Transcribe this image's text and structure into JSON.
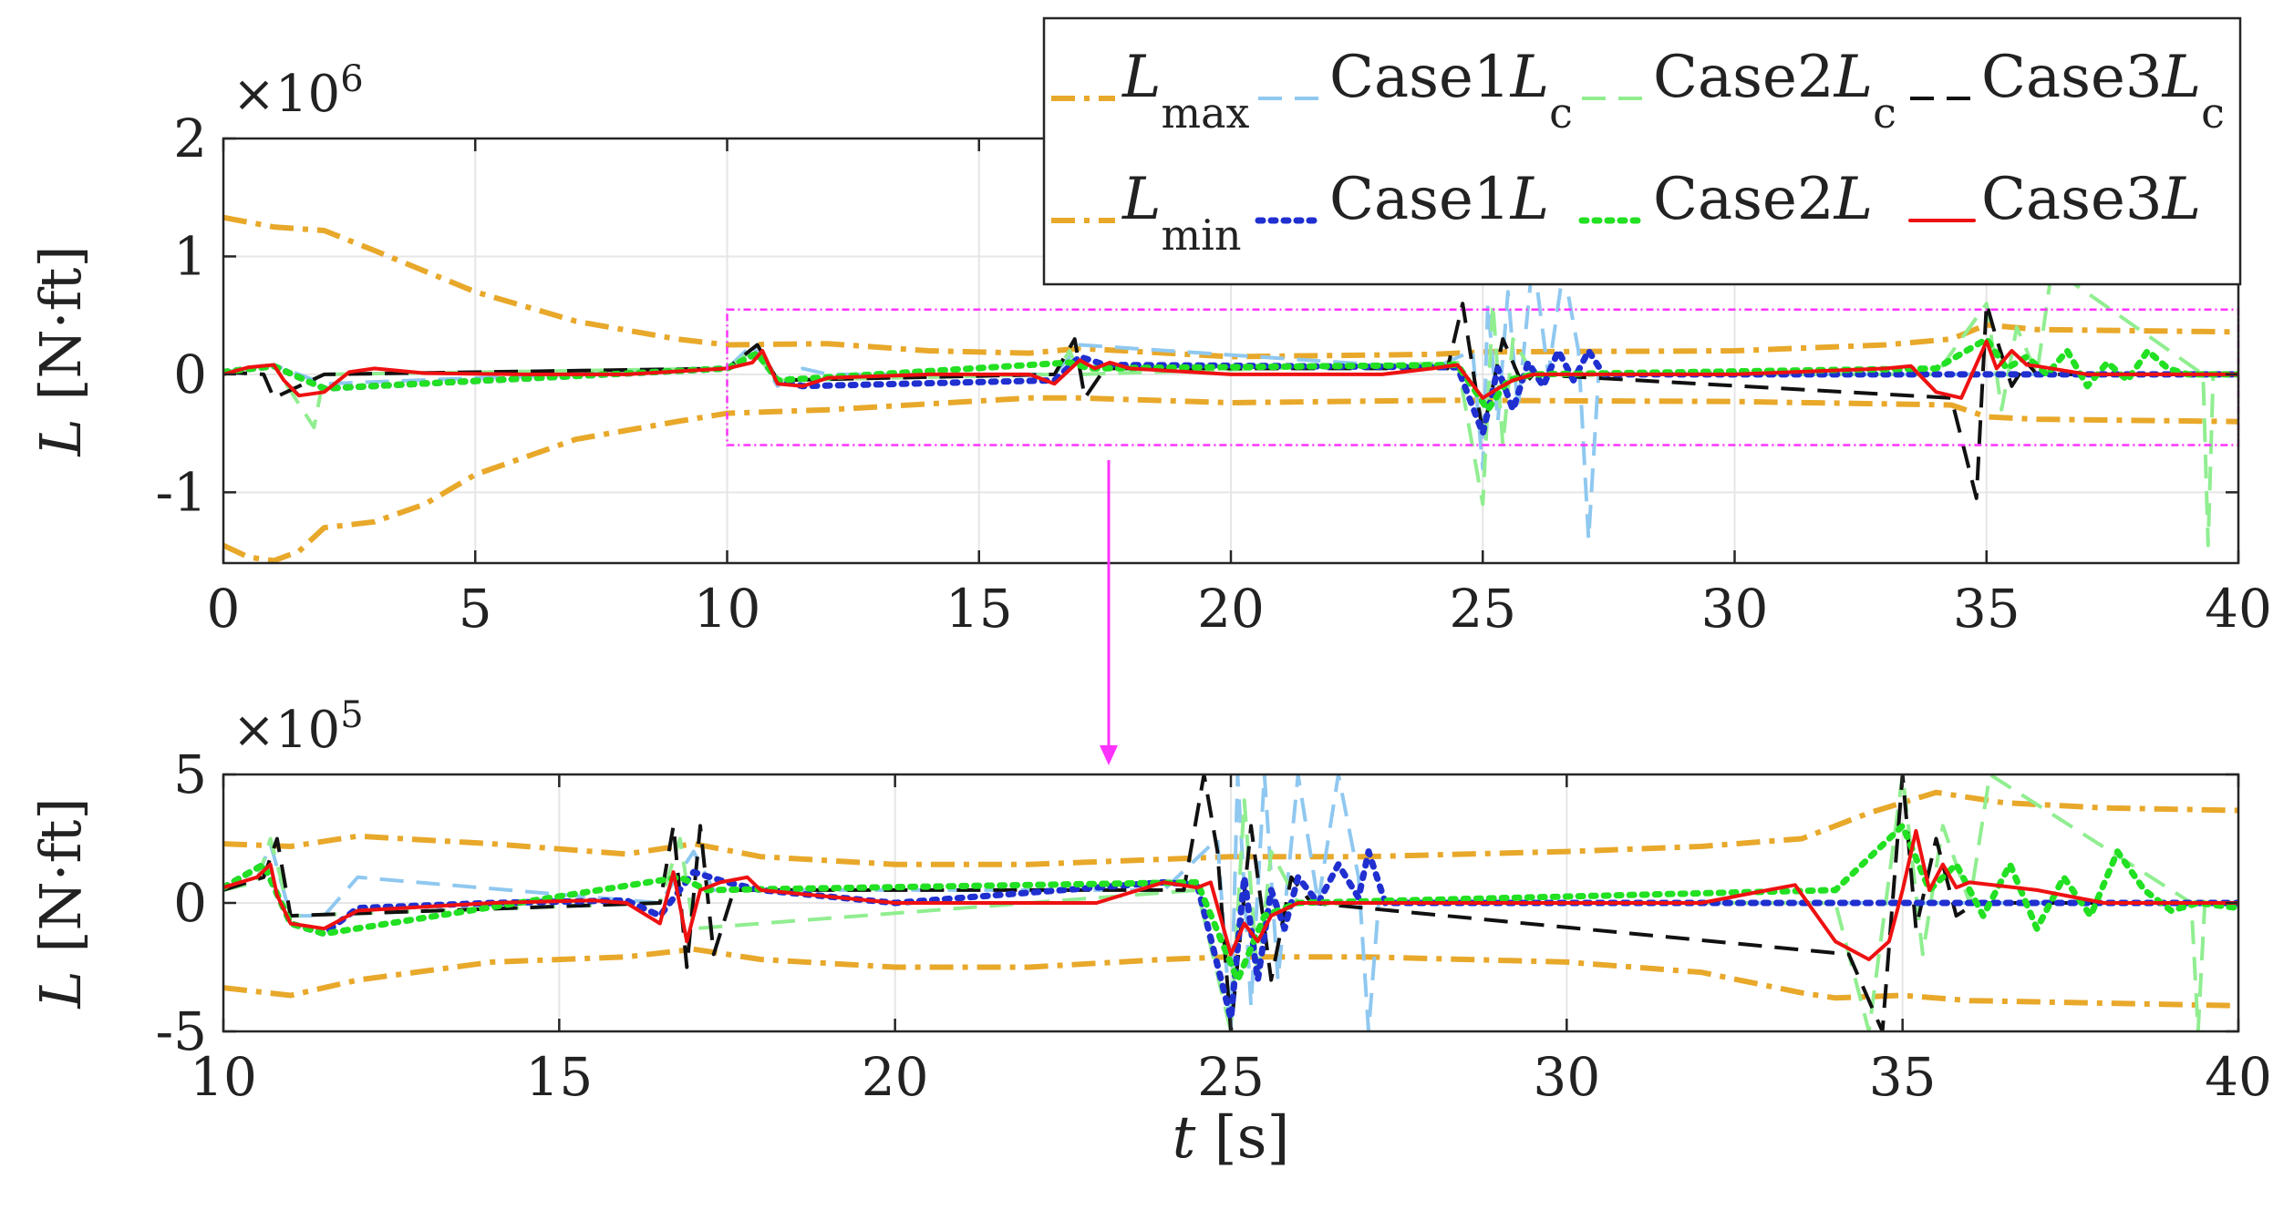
{
  "colors": {
    "bound": "#E8A82A",
    "case1_lc": "#8FC8F0",
    "case2_lc": "#90EE90",
    "case3_lc": "#111111",
    "case1_l": "#1F2FD0",
    "case2_l": "#22E022",
    "case3_l": "#EE1111",
    "zoom_box": "#FF33FF",
    "grid": "#E6E6E6"
  },
  "chart_data": [
    {
      "type": "line",
      "panel": "top",
      "exponent_label": "×10",
      "exponent_power": "6",
      "ylabel": "L [N·ft]",
      "xlabel": "",
      "xlim": [
        0,
        40
      ],
      "ylim": [
        -1.6,
        2
      ],
      "xticks": [
        0,
        5,
        10,
        15,
        20,
        25,
        30,
        35,
        40
      ],
      "xtick_labels": [
        "0",
        "5",
        "10",
        "15",
        "20",
        "25",
        "30",
        "35",
        "40"
      ],
      "yticks": [
        -1,
        0,
        1,
        2
      ],
      "ytick_labels": [
        "-1",
        "0",
        "1",
        "2"
      ],
      "zoom_box": {
        "x": [
          10,
          40
        ],
        "y": [
          -0.6,
          0.55
        ]
      },
      "series": [
        {
          "name": "Lmax",
          "style": "dashdot",
          "color_key": "bound",
          "x": [
            0,
            1,
            2,
            3,
            5,
            7,
            9,
            10,
            12,
            14,
            16,
            17,
            20,
            24,
            25,
            30,
            33,
            34.3,
            35,
            36,
            40
          ],
          "y": [
            1.33,
            1.25,
            1.22,
            1.05,
            0.7,
            0.45,
            0.3,
            0.25,
            0.26,
            0.2,
            0.18,
            0.22,
            0.15,
            0.17,
            0.19,
            0.2,
            0.25,
            0.3,
            0.42,
            0.38,
            0.36
          ]
        },
        {
          "name": "Lmin",
          "style": "dashdot",
          "color_key": "bound",
          "x": [
            0,
            0.5,
            1,
            1.5,
            2,
            3,
            4,
            5,
            7,
            9,
            10,
            12,
            14,
            16,
            17,
            20,
            24,
            25,
            30,
            33,
            34.3,
            35,
            36,
            40
          ],
          "y": [
            -1.45,
            -1.55,
            -1.58,
            -1.5,
            -1.3,
            -1.25,
            -1.1,
            -0.85,
            -0.55,
            -0.4,
            -0.33,
            -0.3,
            -0.25,
            -0.2,
            -0.2,
            -0.24,
            -0.22,
            -0.22,
            -0.23,
            -0.25,
            -0.26,
            -0.36,
            -0.38,
            -0.4
          ]
        },
        {
          "name": "Case1Lc",
          "style": "dash",
          "color_key": "case1_lc",
          "x": [
            0,
            1,
            2,
            10,
            10.5,
            11,
            11.5,
            12,
            16.5,
            17,
            24,
            24.8,
            25,
            25.1,
            25.3,
            25.5,
            25.7,
            26,
            26.3,
            26.6,
            26.9,
            27.1,
            27.3,
            28,
            40
          ],
          "y": [
            0.02,
            0.08,
            -0.08,
            0.05,
            0.25,
            -0.1,
            0.05,
            0.0,
            0.0,
            0.25,
            0.05,
            0.2,
            -0.8,
            0.6,
            -0.4,
            0.7,
            -0.3,
            1.0,
            0.0,
            0.9,
            0.2,
            -1.4,
            0.0,
            0.0,
            0.0
          ]
        },
        {
          "name": "Case2Lc",
          "style": "dash",
          "color_key": "case2_lc",
          "x": [
            0,
            1,
            1.8,
            2,
            10,
            10.5,
            11,
            16.5,
            16.8,
            17,
            24.5,
            25,
            25.2,
            25.4,
            25.6,
            26,
            34,
            35,
            35.3,
            35.6,
            36,
            36.3,
            39.3,
            39.4,
            39.5,
            40
          ],
          "y": [
            0.02,
            0.08,
            -0.45,
            0.0,
            0.05,
            0.2,
            -0.05,
            0.0,
            0.2,
            0.0,
            0.1,
            -1.1,
            0.6,
            -0.6,
            0.3,
            0.0,
            0.0,
            0.6,
            -0.3,
            0.4,
            0.0,
            0.9,
            0.0,
            -1.45,
            0.0,
            0.0
          ]
        },
        {
          "name": "Case3Lc",
          "style": "dash",
          "color_key": "case3_lc",
          "x": [
            0,
            0.8,
            1,
            2,
            10,
            10.6,
            11,
            16.5,
            16.9,
            17.1,
            17.5,
            24.3,
            24.6,
            25,
            25.4,
            25.8,
            26,
            34.3,
            34.8,
            35,
            35.2,
            35.5,
            35.8,
            36,
            40
          ],
          "y": [
            0.02,
            0.0,
            -0.2,
            0.0,
            0.05,
            0.25,
            -0.05,
            0.0,
            0.3,
            -0.2,
            0.05,
            0.05,
            0.6,
            -0.5,
            0.3,
            -0.1,
            0.0,
            -0.2,
            -1.05,
            0.6,
            0.3,
            -0.1,
            0.1,
            0.0,
            0.0
          ]
        },
        {
          "name": "Case1L",
          "style": "dot",
          "color_key": "case1_l",
          "x": [
            0,
            1,
            2,
            10,
            10.6,
            11,
            11.5,
            16.5,
            17,
            17.5,
            24.5,
            25,
            25.3,
            25.6,
            25.9,
            26.2,
            26.5,
            26.8,
            27.1,
            27.4,
            40
          ],
          "y": [
            0.02,
            0.07,
            -0.12,
            0.05,
            0.18,
            -0.05,
            -0.1,
            -0.05,
            0.15,
            0.08,
            0.06,
            -0.5,
            0.05,
            -0.3,
            0.1,
            -0.1,
            0.2,
            -0.05,
            0.2,
            0.0,
            0.0
          ]
        },
        {
          "name": "Case2L",
          "style": "dot",
          "color_key": "case2_l",
          "x": [
            0,
            1,
            2,
            10,
            10.6,
            11,
            16.8,
            17.2,
            24.5,
            25.1,
            25.5,
            26,
            34,
            35,
            35.4,
            35.8,
            36.2,
            36.6,
            37,
            37.4,
            37.8,
            38.2,
            38.6,
            39,
            40
          ],
          "y": [
            0.02,
            0.07,
            -0.12,
            0.05,
            0.18,
            -0.05,
            0.1,
            0.05,
            0.08,
            -0.3,
            -0.05,
            0.0,
            0.05,
            0.3,
            0.05,
            0.15,
            0.0,
            0.2,
            -0.1,
            0.1,
            -0.05,
            0.2,
            0.05,
            0.0,
            0.0
          ]
        },
        {
          "name": "Case3L",
          "style": "solid",
          "color_key": "case3_l",
          "x": [
            0,
            0.5,
            1,
            1.2,
            1.5,
            2,
            2.5,
            3,
            4,
            6,
            8,
            10,
            10.5,
            10.7,
            11,
            11.5,
            12,
            14,
            16,
            16.5,
            17,
            17.3,
            17.6,
            18,
            20,
            23,
            24,
            24.5,
            25,
            25.3,
            25.6,
            26,
            28,
            30,
            33,
            33.5,
            34,
            34.5,
            35,
            35.2,
            35.5,
            35.8,
            36,
            37,
            38,
            40
          ],
          "y": [
            0.0,
            0.06,
            0.08,
            -0.05,
            -0.18,
            -0.15,
            0.02,
            0.05,
            0.01,
            0.0,
            0.0,
            0.05,
            0.1,
            0.2,
            -0.08,
            -0.1,
            -0.03,
            0.0,
            0.0,
            -0.08,
            0.12,
            0.05,
            0.1,
            0.05,
            0.0,
            0.0,
            0.05,
            0.08,
            -0.2,
            -0.12,
            -0.05,
            0.0,
            0.0,
            0.0,
            0.05,
            0.07,
            -0.15,
            -0.2,
            0.28,
            0.05,
            0.2,
            0.08,
            0.07,
            0.0,
            0.0,
            0.0
          ]
        }
      ]
    },
    {
      "type": "line",
      "panel": "bottom",
      "exponent_label": "×10",
      "exponent_power": "5",
      "ylabel": "L [N·ft]",
      "xlabel": "t [s]",
      "xlim": [
        10,
        40
      ],
      "ylim": [
        -5,
        5
      ],
      "xticks": [
        10,
        15,
        20,
        25,
        30,
        35,
        40
      ],
      "xtick_labels": [
        "10",
        "15",
        "20",
        "25",
        "30",
        "35",
        "40"
      ],
      "yticks": [
        -5,
        0,
        5
      ],
      "ytick_labels": [
        "-5",
        "0",
        "5"
      ],
      "series": [
        {
          "name": "Lmax",
          "style": "dashdot",
          "color_key": "bound",
          "x": [
            10,
            11,
            12,
            14,
            16,
            17,
            18,
            20,
            22,
            24,
            25,
            27,
            30,
            32,
            33.5,
            34.5,
            35.5,
            36.5,
            38,
            40
          ],
          "y": [
            2.3,
            2.2,
            2.6,
            2.3,
            1.9,
            2.3,
            1.8,
            1.5,
            1.5,
            1.7,
            1.8,
            1.8,
            2.0,
            2.2,
            2.5,
            3.5,
            4.3,
            3.9,
            3.7,
            3.6
          ]
        },
        {
          "name": "Lmin",
          "style": "dashdot",
          "color_key": "bound",
          "x": [
            10,
            11,
            12,
            14,
            16,
            17,
            18,
            20,
            22,
            24,
            25,
            27,
            30,
            32,
            33.5,
            34,
            35,
            36,
            38,
            40
          ],
          "y": [
            -3.3,
            -3.6,
            -3.0,
            -2.3,
            -2.1,
            -1.8,
            -2.2,
            -2.5,
            -2.5,
            -2.2,
            -2.1,
            -2.1,
            -2.3,
            -2.7,
            -3.5,
            -3.7,
            -3.6,
            -3.8,
            -3.9,
            -4.0
          ]
        },
        {
          "name": "Case1Lc",
          "style": "dash",
          "color_key": "case1_lc",
          "x": [
            10,
            10.5,
            10.7,
            11,
            11.5,
            12,
            16.5,
            17,
            17.3,
            24,
            24.8,
            25,
            25.1,
            25.3,
            25.5,
            25.7,
            26,
            26.3,
            26.6,
            26.9,
            27.05,
            27.2,
            28,
            40
          ],
          "y": [
            0.5,
            0.9,
            2.3,
            -0.5,
            -0.5,
            1.0,
            0.0,
            2.0,
            0.5,
            0.5,
            2.5,
            -5.0,
            5.0,
            -4.0,
            5.0,
            -3.0,
            5.0,
            0.0,
            5.0,
            1.0,
            -5.0,
            0.0,
            0.0,
            0.0
          ]
        },
        {
          "name": "Case2Lc",
          "style": "dash",
          "color_key": "case2_lc",
          "x": [
            10,
            10.5,
            10.7,
            11,
            16.5,
            16.8,
            17,
            24.5,
            25,
            25.2,
            25.4,
            25.6,
            26,
            34,
            34.5,
            35,
            35.3,
            35.6,
            36,
            36.3,
            39.3,
            39.4,
            39.5,
            40
          ],
          "y": [
            0.5,
            0.8,
            2.5,
            -0.5,
            0.0,
            2.5,
            -1.0,
            0.5,
            -5.0,
            4.0,
            -3.0,
            2.0,
            0.0,
            0.0,
            -5.0,
            5.0,
            -2.0,
            3.0,
            0.0,
            5.0,
            0.0,
            -5.0,
            0.0,
            -0.1
          ]
        },
        {
          "name": "Case3Lc",
          "style": "dash",
          "color_key": "case3_lc",
          "x": [
            10,
            10.6,
            10.8,
            11,
            16.5,
            16.7,
            16.9,
            17.1,
            17.3,
            17.6,
            24.3,
            24.6,
            24.8,
            25,
            25.3,
            25.6,
            25.9,
            26.2,
            34.2,
            34.7,
            35.0,
            35.2,
            35.5,
            35.8,
            36.1,
            40
          ],
          "y": [
            0.5,
            1.0,
            2.5,
            -0.5,
            0.0,
            3.0,
            -2.5,
            3.0,
            -2.0,
            0.5,
            0.5,
            5.0,
            2.0,
            -5.0,
            3.0,
            -3.0,
            1.0,
            0.0,
            -2.0,
            -5.0,
            5.0,
            -1.0,
            2.5,
            -0.5,
            0.0,
            0.0
          ]
        },
        {
          "name": "Case1L",
          "style": "dot",
          "color_key": "case1_l",
          "x": [
            10,
            10.6,
            11,
            11.5,
            12,
            14,
            16,
            16.5,
            17,
            17.5,
            18,
            20,
            24,
            24.5,
            25,
            25.2,
            25.4,
            25.6,
            25.8,
            26,
            26.3,
            26.6,
            26.9,
            27.05,
            27.3,
            40
          ],
          "y": [
            0.6,
            1.5,
            -0.8,
            -1.2,
            -0.2,
            0.0,
            0.1,
            -0.5,
            1.2,
            0.8,
            0.5,
            0.0,
            0.8,
            0.7,
            -4.5,
            1.0,
            -3.0,
            0.5,
            -1.0,
            1.0,
            0.0,
            1.5,
            0.2,
            2.0,
            0.0,
            0.0
          ]
        },
        {
          "name": "Case2L",
          "style": "dot",
          "color_key": "case2_l",
          "x": [
            10,
            10.6,
            11,
            11.5,
            16.8,
            17.2,
            24.5,
            25.1,
            25.5,
            26,
            34,
            35,
            35.4,
            35.8,
            36.2,
            36.6,
            37,
            37.4,
            37.8,
            38.2,
            38.6,
            39,
            39.4,
            40
          ],
          "y": [
            0.6,
            1.5,
            -0.8,
            -1.2,
            1.0,
            0.5,
            0.8,
            -3.0,
            -0.5,
            0.0,
            0.5,
            3.0,
            0.5,
            1.5,
            -0.5,
            1.5,
            -1.0,
            1.0,
            -0.5,
            2.0,
            0.5,
            -0.3,
            0.0,
            -0.2
          ]
        },
        {
          "name": "Case3L",
          "style": "solid",
          "color_key": "case3_l",
          "x": [
            10,
            10.5,
            10.7,
            10.8,
            11,
            11.5,
            12,
            14,
            15.5,
            16,
            16.5,
            16.7,
            16.9,
            17.1,
            17.4,
            17.8,
            18,
            20,
            23,
            24,
            24.5,
            24.7,
            25,
            25.2,
            25.4,
            25.6,
            26,
            28,
            30,
            32,
            33,
            33.4,
            34,
            34.5,
            34.8,
            35,
            35.2,
            35.4,
            35.6,
            35.8,
            36,
            37,
            38,
            40
          ],
          "y": [
            0.6,
            1.0,
            1.5,
            0.3,
            -0.8,
            -1.0,
            -0.3,
            0.0,
            0.1,
            0.0,
            -0.8,
            1.2,
            -1.5,
            0.5,
            0.8,
            1.0,
            0.5,
            0.0,
            0.0,
            0.8,
            0.6,
            0.8,
            -2.0,
            -0.8,
            -1.5,
            -0.5,
            0.0,
            0.0,
            0.0,
            0.0,
            0.5,
            0.7,
            -1.5,
            -2.2,
            -1.5,
            0.5,
            2.8,
            0.5,
            1.5,
            0.6,
            0.8,
            0.5,
            0.0,
            0.0
          ]
        }
      ]
    }
  ],
  "legend": {
    "items": [
      {
        "main": "L",
        "sub": "max",
        "suffix": "",
        "series": "Lmax"
      },
      {
        "main": "Case1",
        "sub": "c",
        "suffix": "L",
        "series": "Case1Lc"
      },
      {
        "main": "Case2",
        "sub": "c",
        "suffix": "L",
        "series": "Case2Lc"
      },
      {
        "main": "Case3",
        "sub": "c",
        "suffix": "L",
        "series": "Case3Lc"
      },
      {
        "main": "L",
        "sub": "min",
        "suffix": "",
        "series": "Lmin"
      },
      {
        "main": "Case1",
        "sub": "",
        "suffix": "L",
        "series": "Case1L"
      },
      {
        "main": "Case2",
        "sub": "",
        "suffix": "L",
        "series": "Case2L"
      },
      {
        "main": "Case3",
        "sub": "",
        "suffix": "L",
        "series": "Case3L"
      }
    ]
  }
}
